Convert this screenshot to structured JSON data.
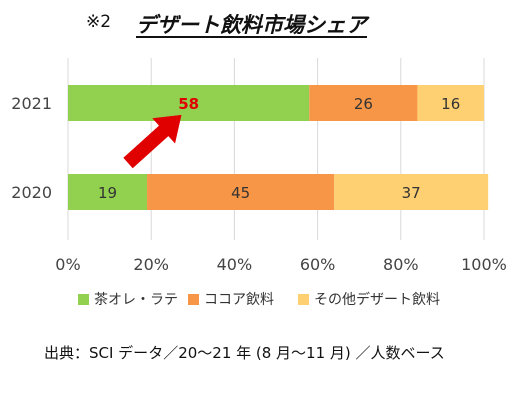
{
  "header": {
    "mark": "※2",
    "title": "デザート飲料市場シェア"
  },
  "chart_data": {
    "type": "bar",
    "orientation": "horizontal",
    "stacked": true,
    "categories": [
      "2021",
      "2020"
    ],
    "series": [
      {
        "name": "茶オレ・ラテ",
        "values": [
          58,
          19
        ],
        "color": "#92d050"
      },
      {
        "name": "ココア飲料",
        "values": [
          26,
          45
        ],
        "color": "#f79646"
      },
      {
        "name": "その他デザート飲料",
        "values": [
          16,
          37
        ],
        "color": "#ffd071"
      }
    ],
    "xlim": [
      0,
      100
    ],
    "x_ticks": [
      "0%",
      "20%",
      "40%",
      "60%",
      "80%",
      "100%"
    ],
    "grid": true,
    "legend_position": "bottom",
    "highlight": {
      "category": "2021",
      "series": "茶オレ・ラテ",
      "label_color": "#e00000",
      "arrow_color": "#e00000"
    }
  },
  "source_note": "出典：SCI データ／20～21 年 (8 月～11 月) ／人数ベース"
}
